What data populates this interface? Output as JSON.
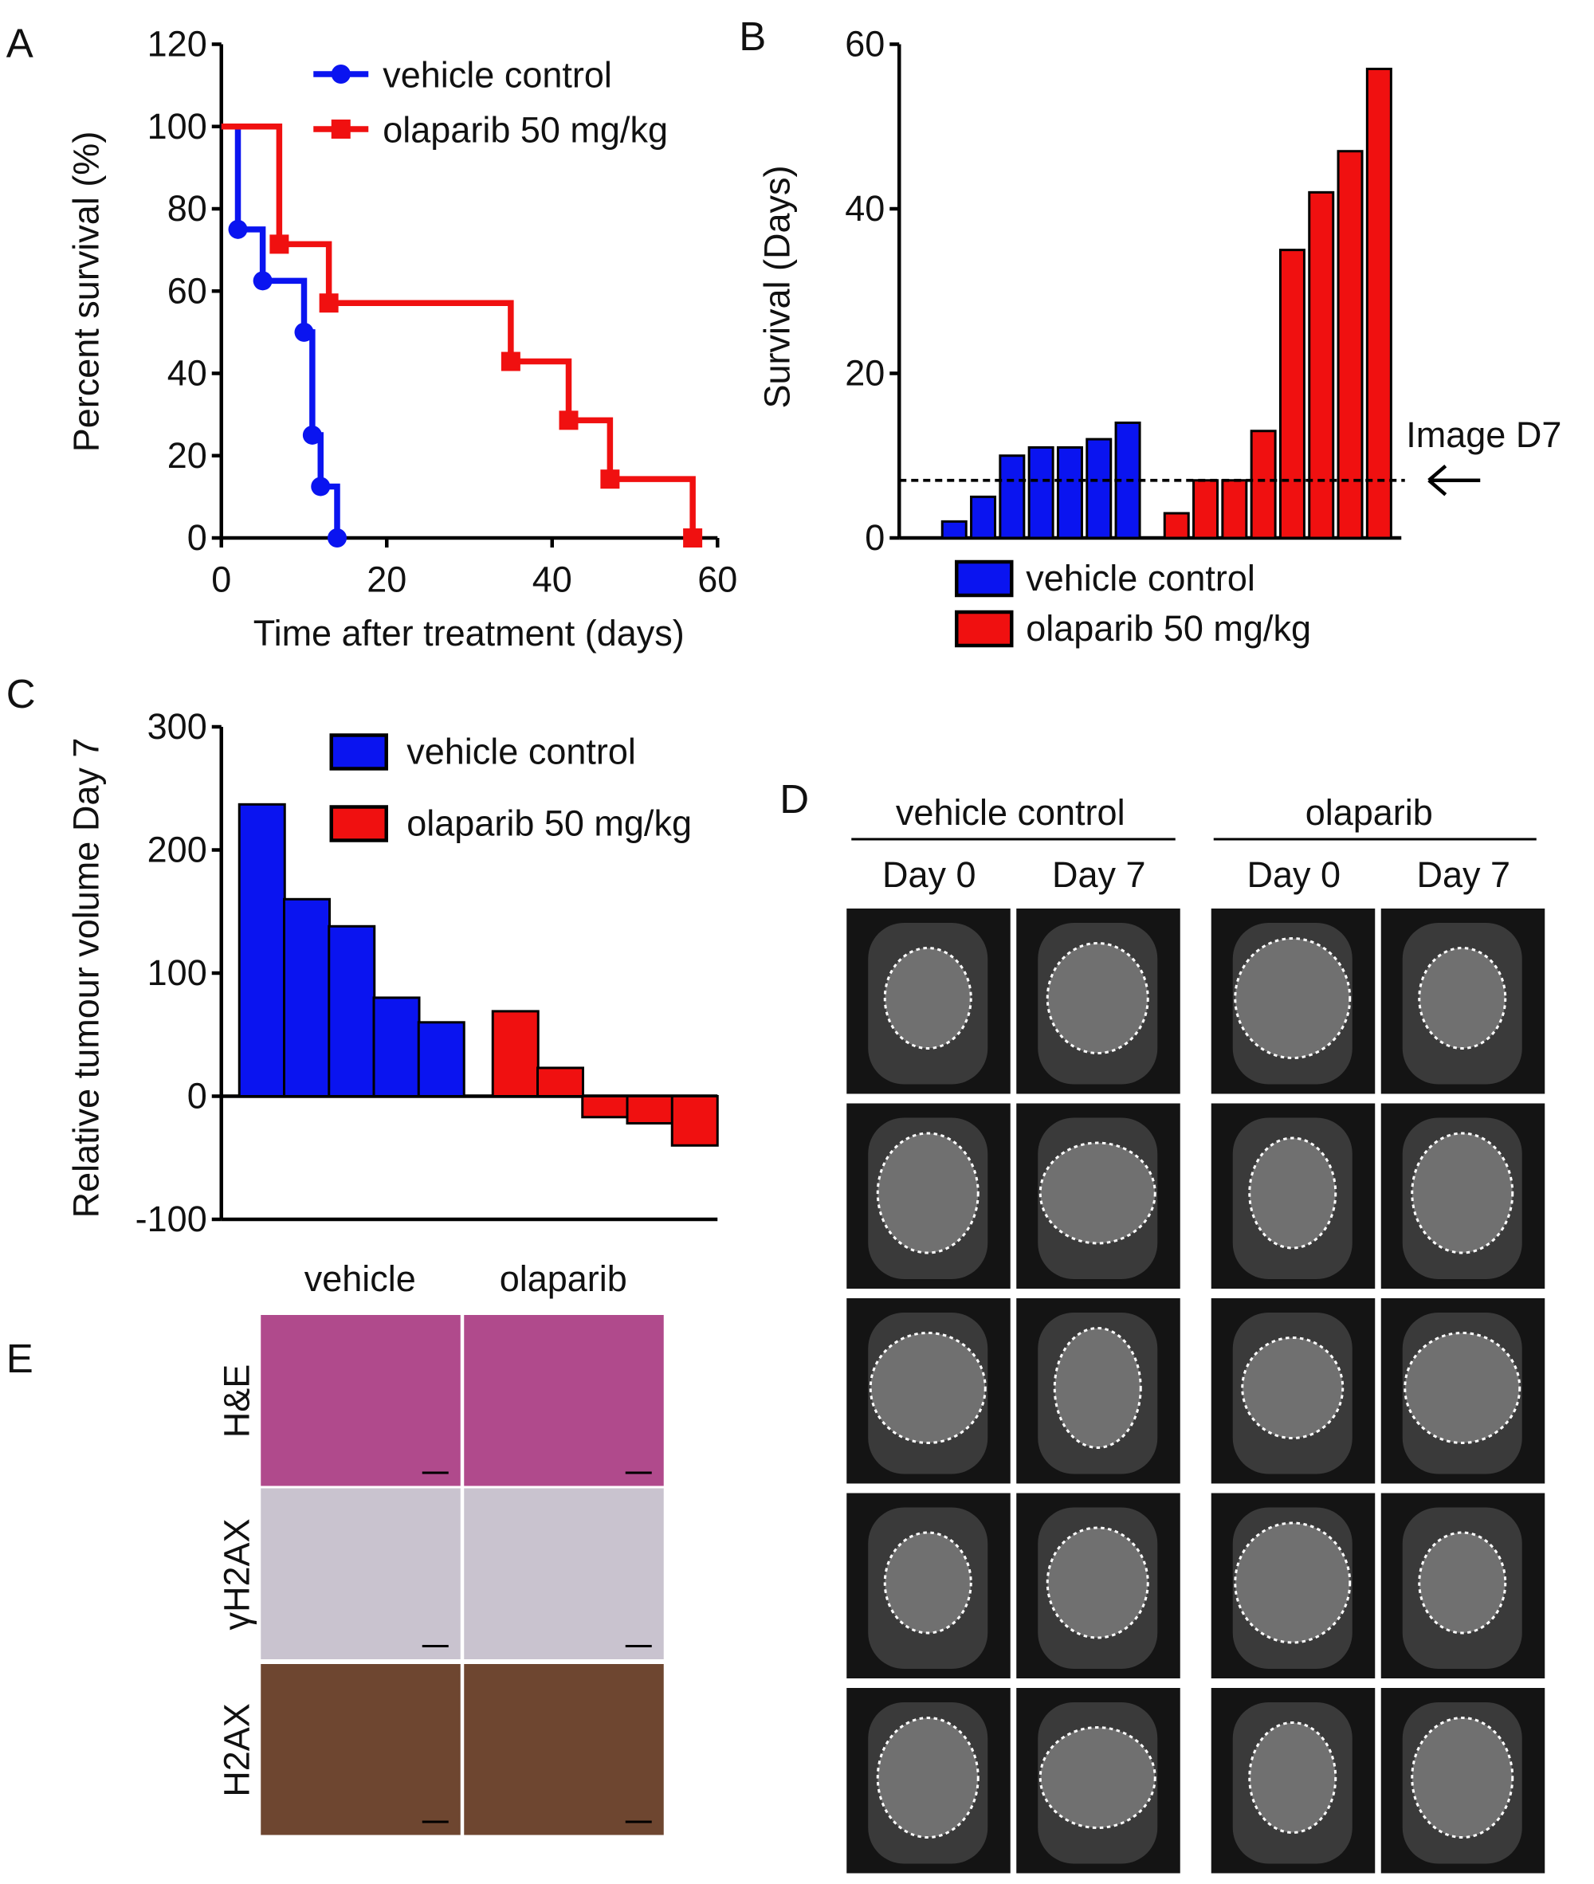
{
  "colors": {
    "vehicle": "#0a14f0",
    "olaparib": "#f01010"
  },
  "chart_data": [
    {
      "panel": "A",
      "type": "line",
      "xlabel": "Time after treatment (days)",
      "ylabel": "Percent survival (%)",
      "xlim": [
        0,
        60
      ],
      "ylim": [
        0,
        120
      ],
      "xticks": [
        0,
        20,
        40,
        60
      ],
      "yticks": [
        0,
        20,
        40,
        60,
        80,
        100,
        120
      ],
      "legend": "top-right",
      "step": true,
      "series": [
        {
          "name": "vehicle control",
          "marker": "circle",
          "x": [
            0,
            2,
            5,
            10,
            11,
            12,
            14
          ],
          "y": [
            100,
            75,
            62.5,
            50,
            25,
            12.5,
            0
          ]
        },
        {
          "name": "olaparib 50 mg/kg",
          "marker": "square",
          "x": [
            0,
            7,
            13,
            35,
            42,
            47,
            57
          ],
          "y": [
            100,
            71.4,
            57.1,
            42.9,
            28.6,
            14.3,
            0
          ]
        }
      ]
    },
    {
      "panel": "B",
      "type": "bar",
      "ylabel": "Survival (Days)",
      "ylim": [
        0,
        60
      ],
      "yticks": [
        0,
        20,
        40,
        60
      ],
      "legend": "bottom",
      "reference_line": {
        "y": 7,
        "label": "Image D7"
      },
      "series": [
        {
          "name": "vehicle control",
          "values": [
            2,
            5,
            10,
            11,
            11,
            12,
            14
          ]
        },
        {
          "name": "olaparib 50 mg/kg",
          "values": [
            3,
            7,
            7,
            13,
            35,
            42,
            47,
            57
          ]
        }
      ]
    },
    {
      "panel": "C",
      "type": "bar",
      "ylabel": "Relative tumour volume Day 7",
      "ylim": [
        -100,
        300
      ],
      "yticks": [
        -100,
        0,
        100,
        200,
        300
      ],
      "legend": "top-right",
      "series": [
        {
          "name": "vehicle control",
          "values": [
            237,
            160,
            138,
            80,
            60
          ]
        },
        {
          "name": "olaparib 50 mg/kg",
          "values": [
            69,
            23,
            -17,
            -22,
            -40
          ]
        }
      ]
    }
  ],
  "panelD": {
    "groups": [
      "vehicle control",
      "olaparib"
    ],
    "days": [
      "Day 0",
      "Day 7",
      "Day 0",
      "Day 7"
    ],
    "rows": 5
  },
  "panelE": {
    "columns": [
      "vehicle",
      "olaparib"
    ],
    "rows": [
      "H&E",
      "γH2AX",
      "H2AX"
    ]
  },
  "panel_labels": [
    "A",
    "B",
    "C",
    "D",
    "E"
  ]
}
